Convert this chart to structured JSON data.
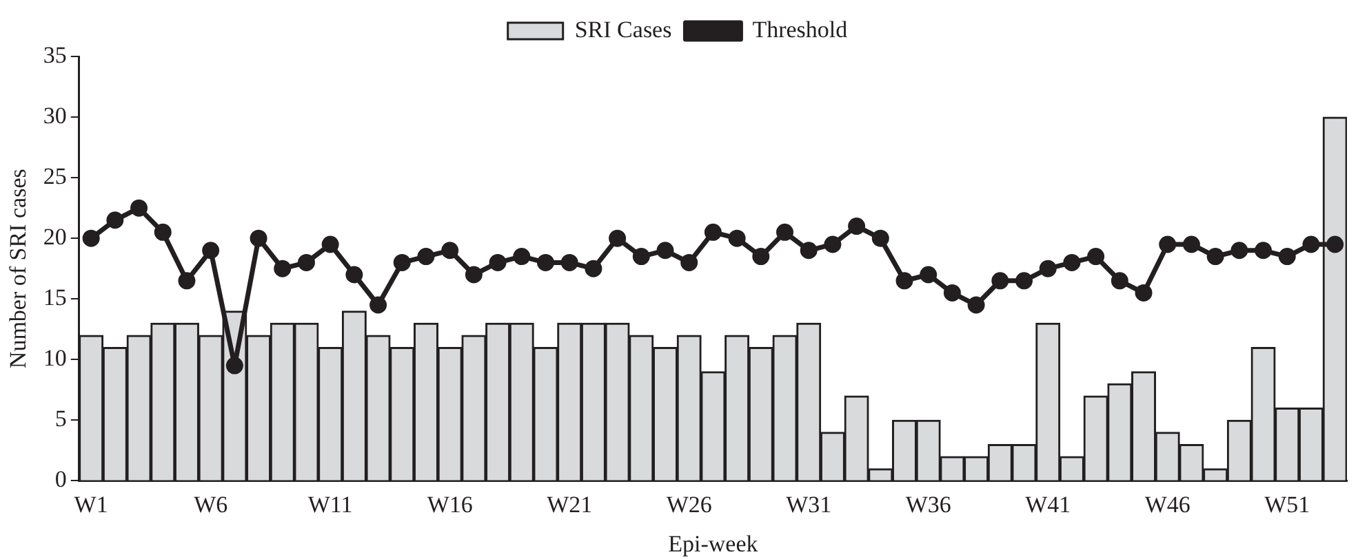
{
  "chart_data": {
    "type": "bar",
    "xlabel": "Epi-week",
    "ylabel": "Number of SRI cases",
    "categories": [
      "W1",
      null,
      null,
      null,
      null,
      "W6",
      null,
      null,
      null,
      null,
      "W11",
      null,
      null,
      null,
      null,
      "W16",
      null,
      null,
      null,
      null,
      "W21",
      null,
      null,
      null,
      null,
      "W26",
      null,
      null,
      null,
      null,
      "W31",
      null,
      null,
      null,
      null,
      "W36",
      null,
      null,
      null,
      null,
      "W41",
      null,
      null,
      null,
      null,
      "W46",
      null,
      null,
      null,
      null,
      "W51",
      null,
      null
    ],
    "series": [
      {
        "name": "SRI Cases",
        "color": "#d9dadc",
        "values": [
          12,
          11,
          12,
          13,
          13,
          12,
          14,
          12,
          13,
          13,
          11,
          14,
          12,
          11,
          13,
          11,
          12,
          13,
          13,
          11,
          13,
          13,
          13,
          12,
          11,
          12,
          9,
          12,
          11,
          12,
          13,
          4,
          7,
          1,
          5,
          5,
          2,
          2,
          3,
          3,
          13,
          2,
          7,
          8,
          9,
          4,
          3,
          1,
          5,
          11,
          6,
          6,
          30
        ]
      },
      {
        "name": "Threshold",
        "type": "line",
        "color": "#231f20",
        "marker": "circle",
        "values": [
          20,
          21.5,
          22.5,
          20.5,
          16.5,
          19,
          9.5,
          20,
          17.5,
          18,
          19.5,
          17,
          14.5,
          18,
          18.5,
          19,
          17,
          18,
          18.5,
          18,
          18,
          17.5,
          20,
          18.5,
          19,
          18,
          20.5,
          20,
          18.5,
          20.5,
          19,
          19.5,
          21,
          20,
          16.5,
          17,
          15.5,
          14.5,
          16.5,
          16.5,
          17.5,
          18,
          18.5,
          16.5,
          15.5,
          19.5,
          19.5,
          18.5,
          19,
          19,
          18.5,
          19.5,
          19.5
        ]
      }
    ],
    "ylim": [
      0,
      35
    ],
    "yticks": [
      0,
      5,
      10,
      15,
      20,
      25,
      30,
      35
    ],
    "grid": false,
    "legend": "top"
  }
}
